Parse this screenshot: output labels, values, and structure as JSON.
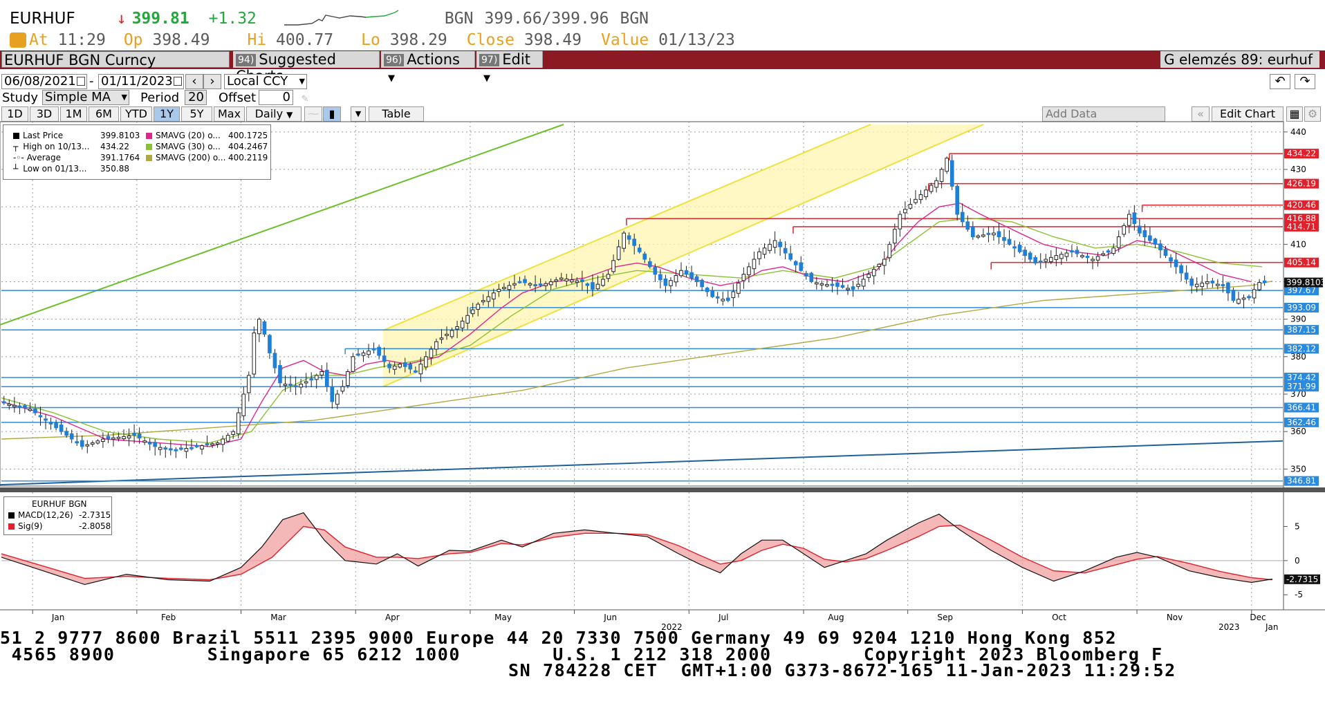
{
  "header": {
    "ticker": "EURHUF",
    "arrow": "↓",
    "last": "399.81",
    "change": "+1.32",
    "bid_source": "BGN",
    "bid_ask": "399.66/399.96",
    "ask_source": "BGN",
    "at_label": "At",
    "at_time": "11:29",
    "op_label": "Op",
    "op_value": "398.49",
    "hi_label": "Hi",
    "hi_value": "400.77",
    "lo_label": "Lo",
    "lo_value": "398.29",
    "close_label": "Close",
    "close_value": "398.49",
    "value_label": "Value",
    "value_date": "01/13/23"
  },
  "toolbar": {
    "security": "EURHUF BGN Curncy",
    "suggested_num": "94)",
    "suggested": "Suggested Charts",
    "actions_num": "96)",
    "actions": "Actions",
    "edit_num": "97)",
    "edit": "Edit",
    "chart_name": "G elemzés 89: eurhuf"
  },
  "controls": {
    "start_date": "06/08/2021",
    "dash": "-",
    "end_date": "01/11/2023",
    "currency": "Local CCY",
    "study_label": "Study",
    "study": "Simple MA",
    "period_label": "Period",
    "period": "20",
    "offset_label": "Offset",
    "offset": "0",
    "tabs": [
      "1D",
      "3D",
      "1M",
      "6M",
      "YTD",
      "1Y",
      "5Y",
      "Max"
    ],
    "frequency": "Daily",
    "table": "Table",
    "add_data": "Add Data",
    "edit_chart": "Edit Chart"
  },
  "legend": {
    "last_label": "Last Price",
    "last_value": "399.8103",
    "high_label": "High on 10/13...",
    "high_value": "434.22",
    "avg_label": "Average",
    "avg_value": "391.1764",
    "low_label": "Low on 01/13...",
    "low_value": "350.88",
    "ma20_label": "SMAVG (20)",
    "ma20_o": "o...",
    "ma20_value": "400.1725",
    "ma30_label": "SMAVG (30)",
    "ma30_o": "o...",
    "ma30_value": "404.2467",
    "ma200_label": "SMAVG (200)",
    "ma200_o": "o...",
    "ma200_value": "400.2119"
  },
  "macd_legend": {
    "title": "EURHUF BGN",
    "macd_label": "MACD(12,26)",
    "macd_value": "-2.7315",
    "sig_label": "Sig(9)",
    "sig_value": "-2.8058"
  },
  "footer": {
    "line1": "51 2 9777 8600 Brazil 5511 2395 9000 Europe 44 20 7330 7500 Germany 49 69 9204 1210 Hong Kong 852",
    "line2": " 4565 8900        Singapore 65 6212 1000        U.S. 1 212 318 2000        Copyright 2023 Bloomberg F",
    "line3": "SN 784228 CET  GMT+1:00 G373-8672-165 11-Jan-2023 11:29:52"
  },
  "colors": {
    "up": "#1a1a1a",
    "down": "#1e7fd8",
    "ma20": "#e0258a",
    "ma30": "#8ac230",
    "ma200": "#b0a840",
    "resistance": "#e0202a",
    "support": "#2a8ae0",
    "channel": "#f0e040",
    "toolbar": "#8b1a24"
  },
  "chart_data": [
    {
      "type": "candlestick",
      "series_name": "EURHUF BGN Curncy",
      "x_axis": {
        "months": [
          "Jan",
          "Feb",
          "Mar",
          "Apr",
          "May",
          "Jun",
          "Jul",
          "Aug",
          "Sep",
          "Oct",
          "Nov",
          "Dec"
        ],
        "year_labels": [
          "2022",
          "2023"
        ],
        "end_label": "Jan"
      },
      "ylim": [
        346,
        442
      ],
      "yticks": [
        350,
        360,
        370,
        380,
        390,
        400,
        410,
        420,
        430,
        440
      ],
      "grid": true,
      "price_path": [
        [
          0,
          368
        ],
        [
          6,
          366
        ],
        [
          12,
          360
        ],
        [
          16,
          356
        ],
        [
          20,
          358
        ],
        [
          26,
          359
        ],
        [
          30,
          356
        ],
        [
          34,
          355
        ],
        [
          38,
          356
        ],
        [
          42,
          357
        ],
        [
          45,
          360
        ],
        [
          48,
          375
        ],
        [
          49.5,
          392
        ],
        [
          51,
          386
        ],
        [
          52,
          381
        ],
        [
          54,
          373
        ],
        [
          57,
          372
        ],
        [
          60,
          374
        ],
        [
          62,
          376
        ],
        [
          64,
          368
        ],
        [
          66,
          372
        ],
        [
          68,
          380
        ],
        [
          72,
          382
        ],
        [
          75,
          377
        ],
        [
          77,
          378
        ],
        [
          80,
          376
        ],
        [
          84,
          384
        ],
        [
          88,
          388
        ],
        [
          92,
          394
        ],
        [
          96,
          398
        ],
        [
          100,
          400
        ],
        [
          104,
          399
        ],
        [
          108,
          401
        ],
        [
          112,
          400
        ],
        [
          114,
          398
        ],
        [
          117,
          402
        ],
        [
          120,
          413
        ],
        [
          123,
          408
        ],
        [
          126,
          402
        ],
        [
          128,
          399
        ],
        [
          131,
          403
        ],
        [
          134,
          400
        ],
        [
          137,
          396
        ],
        [
          140,
          395
        ],
        [
          143,
          402
        ],
        [
          146,
          408
        ],
        [
          149,
          411
        ],
        [
          152,
          406
        ],
        [
          156,
          400
        ],
        [
          160,
          399
        ],
        [
          164,
          398
        ],
        [
          167,
          402
        ],
        [
          170,
          406
        ],
        [
          173,
          418
        ],
        [
          176,
          422
        ],
        [
          180,
          427
        ],
        [
          182,
          433
        ],
        [
          184,
          418
        ],
        [
          187,
          412
        ],
        [
          191,
          413
        ],
        [
          195,
          409
        ],
        [
          199,
          405
        ],
        [
          203,
          407
        ],
        [
          206,
          408
        ],
        [
          210,
          406
        ],
        [
          214,
          409
        ],
        [
          217,
          418
        ],
        [
          219,
          413
        ],
        [
          222,
          410
        ],
        [
          226,
          404
        ],
        [
          229,
          399
        ],
        [
          232,
          400
        ],
        [
          235,
          399
        ],
        [
          237,
          395
        ],
        [
          240,
          396
        ],
        [
          242,
          399.8
        ]
      ],
      "sma20_path": [
        [
          0,
          368
        ],
        [
          10,
          364
        ],
        [
          20,
          358
        ],
        [
          30,
          357
        ],
        [
          40,
          356
        ],
        [
          46,
          358
        ],
        [
          50,
          368
        ],
        [
          54,
          377
        ],
        [
          58,
          379
        ],
        [
          62,
          376
        ],
        [
          66,
          375
        ],
        [
          70,
          378
        ],
        [
          74,
          379
        ],
        [
          78,
          378
        ],
        [
          84,
          380
        ],
        [
          90,
          386
        ],
        [
          96,
          393
        ],
        [
          100,
          397
        ],
        [
          106,
          400
        ],
        [
          112,
          401
        ],
        [
          118,
          404
        ],
        [
          122,
          405
        ],
        [
          126,
          404
        ],
        [
          132,
          401
        ],
        [
          138,
          399
        ],
        [
          142,
          400
        ],
        [
          146,
          403
        ],
        [
          150,
          404
        ],
        [
          156,
          401
        ],
        [
          162,
          400
        ],
        [
          168,
          403
        ],
        [
          172,
          410
        ],
        [
          176,
          416
        ],
        [
          180,
          420
        ],
        [
          184,
          421
        ],
        [
          188,
          418
        ],
        [
          194,
          414
        ],
        [
          200,
          410
        ],
        [
          206,
          408
        ],
        [
          212,
          407
        ],
        [
          218,
          411
        ],
        [
          222,
          410
        ],
        [
          228,
          406
        ],
        [
          234,
          402
        ],
        [
          240,
          400
        ]
      ],
      "sma30_path": [
        [
          0,
          369
        ],
        [
          10,
          365
        ],
        [
          20,
          360
        ],
        [
          30,
          358
        ],
        [
          40,
          357
        ],
        [
          48,
          360
        ],
        [
          54,
          371
        ],
        [
          60,
          375
        ],
        [
          66,
          375
        ],
        [
          72,
          377
        ],
        [
          80,
          379
        ],
        [
          90,
          383
        ],
        [
          98,
          391
        ],
        [
          106,
          398
        ],
        [
          114,
          401
        ],
        [
          122,
          403
        ],
        [
          132,
          402
        ],
        [
          142,
          401
        ],
        [
          150,
          403
        ],
        [
          160,
          401
        ],
        [
          168,
          404
        ],
        [
          174,
          410
        ],
        [
          180,
          416
        ],
        [
          186,
          417
        ],
        [
          194,
          416
        ],
        [
          202,
          412
        ],
        [
          210,
          409
        ],
        [
          218,
          410
        ],
        [
          226,
          408
        ],
        [
          234,
          405
        ],
        [
          242,
          404
        ]
      ],
      "sma200_path": [
        [
          0,
          358
        ],
        [
          20,
          359
        ],
        [
          40,
          361
        ],
        [
          60,
          363
        ],
        [
          80,
          367
        ],
        [
          100,
          371
        ],
        [
          120,
          377
        ],
        [
          140,
          381
        ],
        [
          160,
          385
        ],
        [
          180,
          391
        ],
        [
          200,
          395
        ],
        [
          220,
          397
        ],
        [
          240,
          399
        ],
        [
          244,
          400.2
        ]
      ],
      "resistance_levels": [
        {
          "value": 434.22,
          "from": 182
        },
        {
          "value": 426.19,
          "from": 178
        },
        {
          "value": 420.46,
          "from": 219
        },
        {
          "value": 416.88,
          "from": 120
        },
        {
          "value": 414.71,
          "from": 152
        },
        {
          "value": 405.14,
          "from": 190
        }
      ],
      "support_levels": [
        {
          "value": 397.67,
          "from": 0
        },
        {
          "value": 393.09,
          "from": 90
        },
        {
          "value": 387.15,
          "from": 0
        },
        {
          "value": 382.12,
          "from": 66
        },
        {
          "value": 374.42,
          "from": 0
        },
        {
          "value": 371.99,
          "from": 0
        },
        {
          "value": 366.41,
          "from": 0
        },
        {
          "value": 362.46,
          "from": 0
        },
        {
          "value": 346.81,
          "from": 0
        }
      ],
      "price_labels": {
        "resistance": [
          "434.22",
          "426.19",
          "420.46",
          "416.88",
          "414.71",
          "405.14"
        ],
        "support": [
          "397.67",
          "393.09",
          "387.15",
          "382.12",
          "374.42",
          "371.99",
          "366.41",
          "362.46",
          "346.81"
        ],
        "last": "399.8103"
      }
    },
    {
      "type": "line",
      "series": [
        {
          "name": "MACD(12,26)",
          "last": -2.7315
        },
        {
          "name": "Sig(9)",
          "last": -2.8058
        }
      ],
      "ylim": [
        -7,
        10
      ],
      "yticks": [
        -5,
        0,
        5
      ],
      "end_label": "-2.7315"
    }
  ]
}
